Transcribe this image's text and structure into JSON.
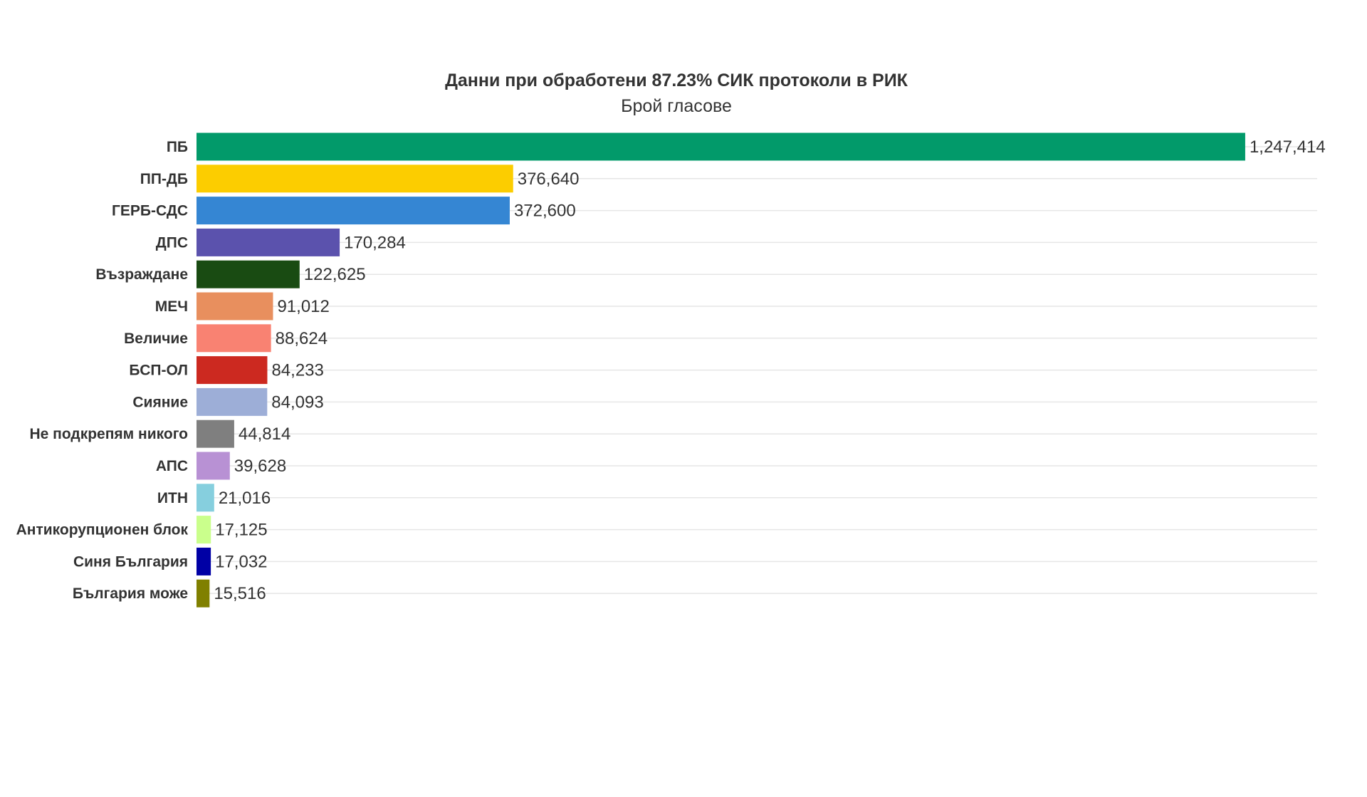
{
  "chart_data": {
    "type": "bar",
    "orientation": "horizontal",
    "title": "Данни при обработени 87.23% СИК протоколи в РИК",
    "subtitle": "Брой гласове",
    "xlabel": "",
    "ylabel": "",
    "xlim": [
      0,
      1333000
    ],
    "grid": true,
    "legend": "none",
    "categories": [
      "ПБ",
      "ПП-ДБ",
      "ГЕРБ-СДС",
      "ДПС",
      "Възраждане",
      "МЕЧ",
      "Величие",
      "БСП-ОЛ",
      "Сияние",
      "Не подкрепям никого",
      "АПС",
      "ИТН",
      "Антикорупционен блок",
      "Синя България",
      "България може"
    ],
    "values": [
      1247414,
      376640,
      372600,
      170284,
      122625,
      91012,
      88624,
      84233,
      84093,
      44814,
      39628,
      21016,
      17125,
      17032,
      15516
    ],
    "value_labels": [
      "1,247,414",
      "376,640",
      "372,600",
      "170,284",
      "122,625",
      "91,012",
      "88,624",
      "84,233",
      "84,093",
      "44,814",
      "39,628",
      "21,016",
      "17,125",
      "17,032",
      "15,516"
    ],
    "colors": [
      "#029a6a",
      "#fccd00",
      "#3586d3",
      "#5b52ad",
      "#194b12",
      "#e88f5e",
      "#f98272",
      "#cc2920",
      "#9daed7",
      "#7f7f7f",
      "#b891d4",
      "#86cfde",
      "#caff8c",
      "#0000a5",
      "#808000"
    ]
  }
}
